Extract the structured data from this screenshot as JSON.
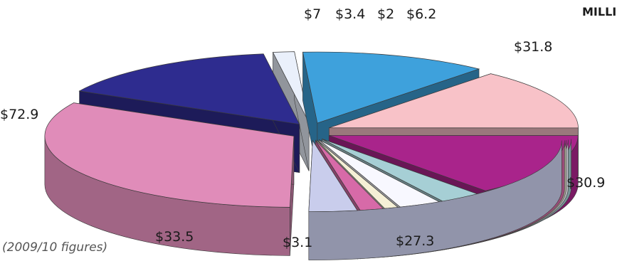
{
  "chart_data": {
    "type": "pie",
    "style": "exploded-3d",
    "corner_label": "MILLI",
    "footnote": "(2009/10 figures)",
    "slices": [
      {
        "value": 72.9,
        "label": "$72.9",
        "color": "#e08cb9"
      },
      {
        "value": 33.5,
        "label": "$33.5",
        "color": "#2e2c8f"
      },
      {
        "value": 3.1,
        "label": "$3.1",
        "color": "#eaf0fb"
      },
      {
        "value": 27.3,
        "label": "$27.3",
        "color": "#3ea1dc"
      },
      {
        "value": 30.9,
        "label": "$30.9",
        "color": "#f8c2c8"
      },
      {
        "value": 31.8,
        "label": "$31.8",
        "color": "#a9248b"
      },
      {
        "value": 6.2,
        "label": "$6.2",
        "color": "#a6cfd5"
      },
      {
        "value": 6.2,
        "label": "$6.2",
        "color": "#f8f8ff"
      },
      {
        "value": 2,
        "label": "$2",
        "color": "#f5f0d6"
      },
      {
        "value": 3.4,
        "label": "$3.4",
        "color": "#d76aa8"
      },
      {
        "value": 7,
        "label": "$7",
        "color": "#c9cdec"
      }
    ]
  }
}
